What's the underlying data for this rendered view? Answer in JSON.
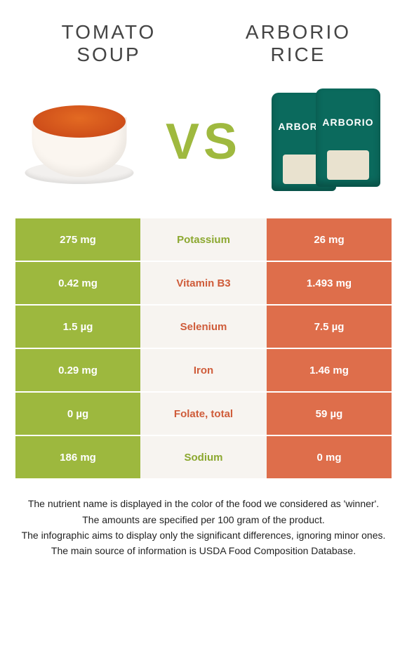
{
  "header": {
    "left_title": "TOMATO SOUP",
    "right_title": "ARBORIO RICE",
    "vs": "VS"
  },
  "colors": {
    "left_col_bg": "#9db83e",
    "mid_col_bg": "#f7f4f0",
    "right_col_bg": "#de6e4b",
    "vs_color": "#9fb93f",
    "winner_left_text": "#8ca830",
    "winner_right_text": "#cf5c3a"
  },
  "table": {
    "rows": [
      {
        "left": "275 mg",
        "label": "Potassium",
        "right": "26 mg",
        "winner": "left"
      },
      {
        "left": "0.42 mg",
        "label": "Vitamin B3",
        "right": "1.493 mg",
        "winner": "right"
      },
      {
        "left": "1.5 µg",
        "label": "Selenium",
        "right": "7.5 µg",
        "winner": "right"
      },
      {
        "left": "0.29 mg",
        "label": "Iron",
        "right": "1.46 mg",
        "winner": "right"
      },
      {
        "left": "0 µg",
        "label": "Folate, total",
        "right": "59 µg",
        "winner": "right"
      },
      {
        "left": "186 mg",
        "label": "Sodium",
        "right": "0 mg",
        "winner": "left"
      }
    ]
  },
  "footer": {
    "line1": "The nutrient name is displayed in the color of the food we considered as 'winner'.",
    "line2": "The amounts are specified per 100 gram of the product.",
    "line3": "The infographic aims to display only the significant differences, ignoring minor ones.",
    "line4": "The main source of information is USDA Food Composition Database."
  }
}
